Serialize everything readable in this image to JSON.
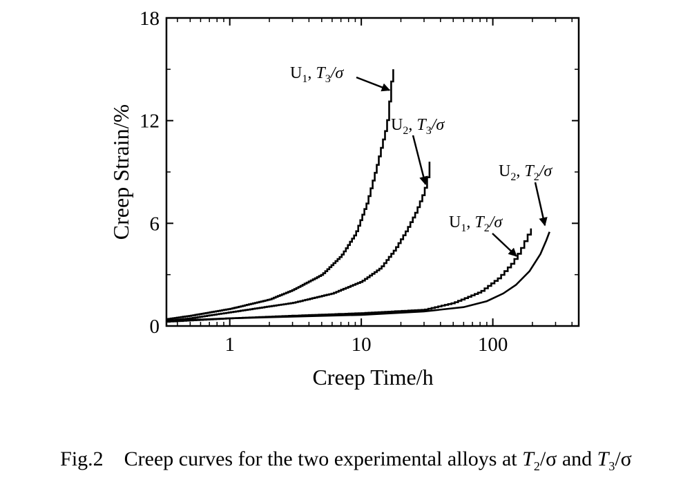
{
  "chart_data": {
    "type": "line",
    "xlabel": "Creep Time/h",
    "ylabel": "Creep Strain/%",
    "xscale": "log",
    "xlim": [
      0.33,
      450
    ],
    "ylim": [
      0,
      18
    ],
    "xticks": [
      1,
      10,
      100
    ],
    "xtick_labels": [
      "1",
      "10",
      "100"
    ],
    "yticks": [
      0,
      6,
      12,
      18
    ],
    "ytick_labels": [
      "0",
      "6",
      "12",
      "18"
    ],
    "grid": false,
    "legend": "none",
    "series": [
      {
        "name": "U1, T3/σ",
        "label_parts": [
          "U",
          "1",
          ", ",
          "T",
          "3",
          "/σ"
        ],
        "color": "#000000",
        "step": true,
        "x": [
          0.33,
          0.5,
          1,
          2,
          3,
          5,
          7,
          9,
          11,
          13,
          14.5,
          15.5,
          16,
          16.5,
          17,
          17.5
        ],
        "y": [
          0.4,
          0.6,
          1.0,
          1.55,
          2.1,
          3.0,
          4.1,
          5.4,
          7.2,
          9.3,
          10.8,
          11.7,
          12.5,
          13.6,
          14.5,
          15.0
        ]
      },
      {
        "name": "U2, T3/σ",
        "label_parts": [
          "U",
          "2",
          ", ",
          "T",
          "3",
          "/σ"
        ],
        "color": "#000000",
        "step": true,
        "x": [
          0.33,
          0.5,
          1,
          3,
          6,
          10,
          14,
          18,
          22,
          26,
          29,
          31,
          32,
          32.5,
          33
        ],
        "y": [
          0.3,
          0.45,
          0.8,
          1.35,
          1.9,
          2.6,
          3.4,
          4.5,
          5.6,
          6.7,
          7.6,
          8.3,
          8.9,
          9.3,
          9.6
        ]
      },
      {
        "name": "U1, T2/σ",
        "label_parts": [
          "U",
          "1",
          ", ",
          "T",
          "2",
          "/σ"
        ],
        "color": "#000000",
        "step": true,
        "x": [
          0.33,
          1,
          3,
          10,
          30,
          50,
          80,
          110,
          140,
          160,
          180,
          195
        ],
        "y": [
          0.25,
          0.45,
          0.6,
          0.75,
          0.95,
          1.35,
          2.0,
          2.8,
          3.7,
          4.4,
          5.2,
          5.7
        ]
      },
      {
        "name": "U2, T2/σ",
        "label_parts": [
          "U",
          "2",
          ", ",
          "T",
          "2",
          "/σ"
        ],
        "color": "#000000",
        "step": false,
        "x": [
          0.33,
          1,
          3,
          10,
          30,
          60,
          90,
          120,
          150,
          190,
          230,
          255,
          270
        ],
        "y": [
          0.3,
          0.45,
          0.55,
          0.65,
          0.85,
          1.1,
          1.45,
          1.9,
          2.4,
          3.2,
          4.2,
          5.0,
          5.5
        ]
      }
    ]
  },
  "caption": {
    "fig": "Fig.2",
    "text_pre": "Creep curves for the two experimental alloys at ",
    "t_var": "T",
    "sub_a": "2",
    "mid": "/σ and ",
    "sub_b": "3",
    "end": "/σ"
  }
}
